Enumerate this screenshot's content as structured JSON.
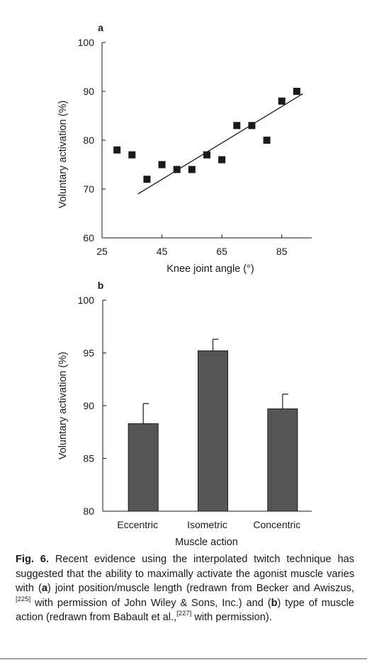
{
  "chart_data": [
    {
      "panel": "a",
      "type": "scatter",
      "xlabel": "Knee joint angle (°)",
      "ylabel": "Voluntary activation (%)",
      "xlim": [
        25,
        95
      ],
      "ylim": [
        60,
        100
      ],
      "xticks": [
        25,
        45,
        65,
        85
      ],
      "yticks": [
        60,
        70,
        80,
        90,
        100
      ],
      "points": [
        {
          "x": 30,
          "y": 78
        },
        {
          "x": 35,
          "y": 77
        },
        {
          "x": 40,
          "y": 72
        },
        {
          "x": 45,
          "y": 75
        },
        {
          "x": 50,
          "y": 74
        },
        {
          "x": 55,
          "y": 74
        },
        {
          "x": 60,
          "y": 77
        },
        {
          "x": 65,
          "y": 76
        },
        {
          "x": 70,
          "y": 83
        },
        {
          "x": 75,
          "y": 83
        },
        {
          "x": 80,
          "y": 80
        },
        {
          "x": 85,
          "y": 88
        },
        {
          "x": 90,
          "y": 90
        }
      ],
      "trendline": {
        "x": [
          37,
          92
        ],
        "y": [
          69,
          89.5
        ]
      },
      "grid": false,
      "marker_color": "#1a1a1a"
    },
    {
      "panel": "b",
      "type": "bar",
      "xlabel": "Muscle action",
      "ylabel": "Voluntary activation (%)",
      "categories": [
        "Eccentric",
        "Isometric",
        "Concentric"
      ],
      "values": [
        88.3,
        95.2,
        89.7
      ],
      "errors": [
        1.9,
        1.1,
        1.4
      ],
      "ylim": [
        80,
        100
      ],
      "yticks": [
        80,
        85,
        90,
        95,
        100
      ],
      "grid": false,
      "bar_color": "#555555"
    }
  ],
  "caption": {
    "fig_label": "Fig. 6.",
    "part1": " Recent evidence using the interpolated twitch technique has suggested that the ability to maximally activate the agonist muscle varies with (",
    "a": "a",
    "part2": ") joint position/muscle length (redrawn from Becker and Awiszus,",
    "ref1": "[225]",
    "part3": " with permission of John Wiley & Sons, Inc.) and (",
    "b": "b",
    "part4": ") type of muscle action (redrawn from Babault et al.,",
    "ref2": "[227]",
    "part5": " with permission)."
  }
}
